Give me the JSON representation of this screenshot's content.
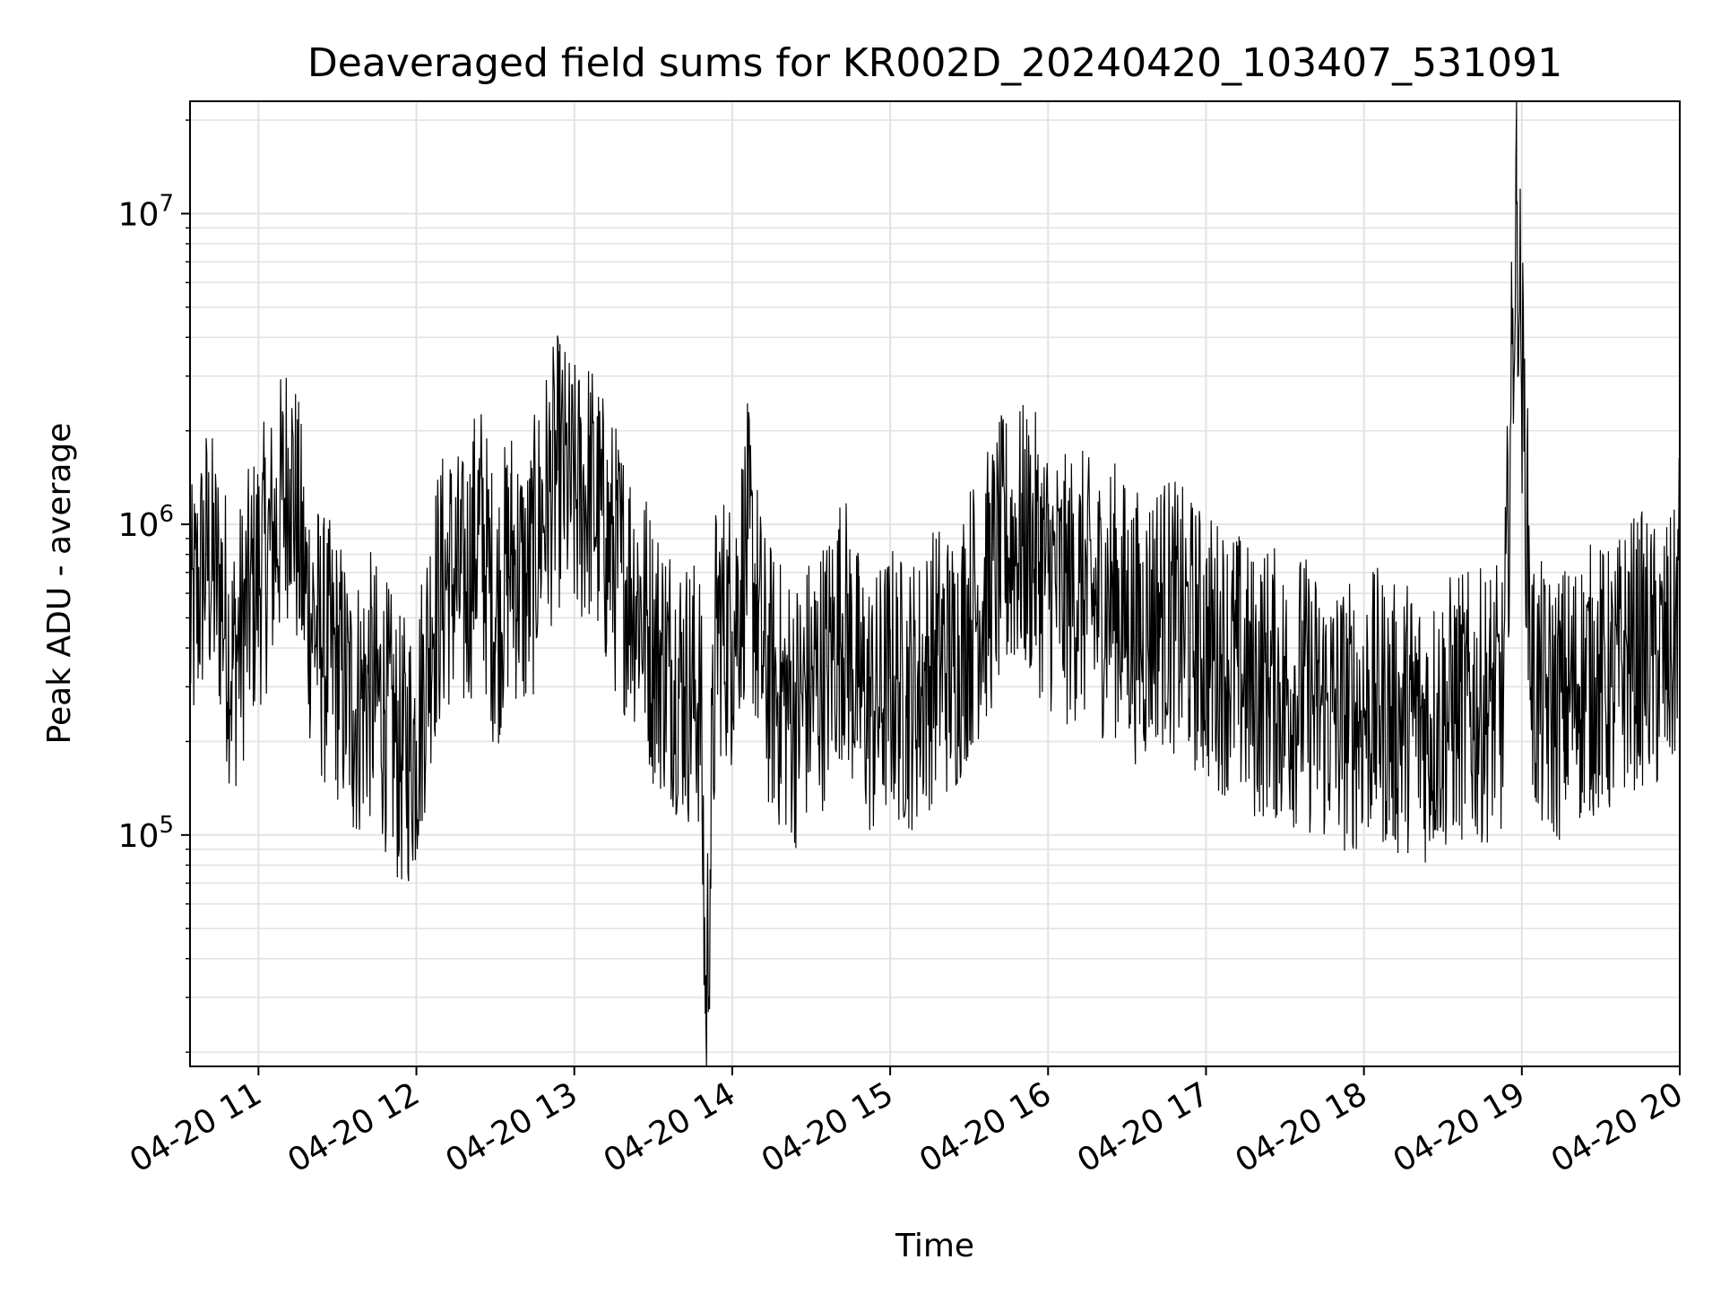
{
  "chart_data": {
    "type": "line",
    "title": "Deaveraged field sums for KR002D_20240420_103407_531091",
    "xlabel": "Time",
    "ylabel": "Peak ADU - average",
    "x_range": [
      "2024-04-20 10:34",
      "2024-04-20 20:00"
    ],
    "y_scale": "log",
    "ylim": [
      18000,
      23000000
    ],
    "grid": true,
    "line_color": "#000000",
    "x_ticks": [
      {
        "value": "2024-04-20 11:00",
        "label": "04-20 11"
      },
      {
        "value": "2024-04-20 12:00",
        "label": "04-20 12"
      },
      {
        "value": "2024-04-20 13:00",
        "label": "04-20 13"
      },
      {
        "value": "2024-04-20 14:00",
        "label": "04-20 14"
      },
      {
        "value": "2024-04-20 15:00",
        "label": "04-20 15"
      },
      {
        "value": "2024-04-20 16:00",
        "label": "04-20 16"
      },
      {
        "value": "2024-04-20 17:00",
        "label": "04-20 17"
      },
      {
        "value": "2024-04-20 18:00",
        "label": "04-20 18"
      },
      {
        "value": "2024-04-20 19:00",
        "label": "04-20 19"
      },
      {
        "value": "2024-04-20 20:00",
        "label": "04-20 20"
      }
    ],
    "y_ticks": [
      {
        "value": 100000,
        "label": "10",
        "exponent": "5"
      },
      {
        "value": 1000000,
        "label": "10",
        "exponent": "6"
      },
      {
        "value": 10000000,
        "label": "10",
        "exponent": "7"
      }
    ],
    "series": [
      {
        "x": [
          "2024-04-20 10:34",
          "2024-04-20 10:40",
          "2024-04-20 10:46",
          "2024-04-20 10:50",
          "2024-04-20 10:55",
          "2024-04-20 11:00",
          "2024-04-20 11:06",
          "2024-04-20 11:12",
          "2024-04-20 11:18",
          "2024-04-20 11:24",
          "2024-04-20 11:30",
          "2024-04-20 11:36",
          "2024-04-20 11:42",
          "2024-04-20 11:48",
          "2024-04-20 11:54",
          "2024-04-20 12:00",
          "2024-04-20 12:06",
          "2024-04-20 12:12",
          "2024-04-20 12:18",
          "2024-04-20 12:24",
          "2024-04-20 12:30",
          "2024-04-20 12:36",
          "2024-04-20 12:42",
          "2024-04-20 12:48",
          "2024-04-20 12:54",
          "2024-04-20 13:00",
          "2024-04-20 13:06",
          "2024-04-20 13:12",
          "2024-04-20 13:18",
          "2024-04-20 13:24",
          "2024-04-20 13:30",
          "2024-04-20 13:36",
          "2024-04-20 13:42",
          "2024-04-20 13:48",
          "2024-04-20 13:50",
          "2024-04-20 13:54",
          "2024-04-20 14:00",
          "2024-04-20 14:06",
          "2024-04-20 14:12",
          "2024-04-20 14:18",
          "2024-04-20 14:24",
          "2024-04-20 14:30",
          "2024-04-20 14:36",
          "2024-04-20 14:42",
          "2024-04-20 14:48",
          "2024-04-20 14:54",
          "2024-04-20 15:00",
          "2024-04-20 15:06",
          "2024-04-20 15:12",
          "2024-04-20 15:18",
          "2024-04-20 15:24",
          "2024-04-20 15:30",
          "2024-04-20 15:36",
          "2024-04-20 15:42",
          "2024-04-20 15:48",
          "2024-04-20 15:54",
          "2024-04-20 16:00",
          "2024-04-20 16:06",
          "2024-04-20 16:12",
          "2024-04-20 16:18",
          "2024-04-20 16:24",
          "2024-04-20 16:30",
          "2024-04-20 16:36",
          "2024-04-20 16:42",
          "2024-04-20 16:48",
          "2024-04-20 16:54",
          "2024-04-20 17:00",
          "2024-04-20 17:06",
          "2024-04-20 17:12",
          "2024-04-20 17:18",
          "2024-04-20 17:24",
          "2024-04-20 17:30",
          "2024-04-20 17:36",
          "2024-04-20 17:42",
          "2024-04-20 17:48",
          "2024-04-20 17:54",
          "2024-04-20 18:00",
          "2024-04-20 18:06",
          "2024-04-20 18:12",
          "2024-04-20 18:18",
          "2024-04-20 18:24",
          "2024-04-20 18:30",
          "2024-04-20 18:36",
          "2024-04-20 18:42",
          "2024-04-20 18:48",
          "2024-04-20 18:53",
          "2024-04-20 18:58",
          "2024-04-20 19:04",
          "2024-04-20 19:10",
          "2024-04-20 19:16",
          "2024-04-20 19:22",
          "2024-04-20 19:28",
          "2024-04-20 19:34",
          "2024-04-20 19:40",
          "2024-04-20 19:46",
          "2024-04-20 19:52",
          "2024-04-20 19:58",
          "2024-04-20 20:00"
        ],
        "values": [
          450000,
          800000,
          600000,
          350000,
          500000,
          700000,
          900000,
          1500000,
          600000,
          400000,
          350000,
          250000,
          300000,
          250000,
          180000,
          200000,
          500000,
          700000,
          600000,
          1000000,
          500000,
          800000,
          600000,
          1100000,
          1500000,
          1200000,
          1300000,
          900000,
          700000,
          600000,
          400000,
          350000,
          300000,
          280000,
          25000,
          500000,
          450000,
          900000,
          350000,
          280000,
          250000,
          300000,
          350000,
          500000,
          300000,
          250000,
          320000,
          280000,
          300000,
          380000,
          350000,
          500000,
          600000,
          800000,
          900000,
          850000,
          700000,
          600000,
          650000,
          550000,
          600000,
          500000,
          450000,
          550000,
          500000,
          450000,
          400000,
          380000,
          350000,
          300000,
          320000,
          280000,
          300000,
          260000,
          250000,
          240000,
          250000,
          260000,
          230000,
          250000,
          220000,
          240000,
          260000,
          250000,
          270000,
          260000,
          10800000,
          300000,
          250000,
          270000,
          300000,
          320000,
          300000,
          380000,
          400000,
          350000,
          400000,
          800000
        ]
      }
    ]
  }
}
